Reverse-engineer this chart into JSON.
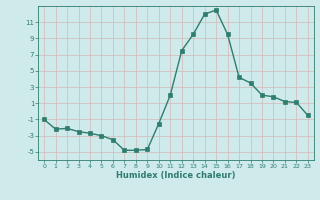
{
  "x": [
    0,
    1,
    2,
    3,
    4,
    5,
    6,
    7,
    8,
    9,
    10,
    11,
    12,
    13,
    14,
    15,
    16,
    17,
    18,
    19,
    20,
    21,
    22,
    23
  ],
  "y": [
    -1.0,
    -2.2,
    -2.1,
    -2.5,
    -2.7,
    -3.0,
    -3.5,
    -4.8,
    -4.8,
    -4.7,
    -1.5,
    2.0,
    7.5,
    9.5,
    12.0,
    12.5,
    9.5,
    4.2,
    3.5,
    2.0,
    1.8,
    1.2,
    1.1,
    -0.5
  ],
  "xlabel": "Humidex (Indice chaleur)",
  "xlim": [
    -0.5,
    23.5
  ],
  "ylim": [
    -6,
    13
  ],
  "yticks": [
    -5,
    -3,
    -1,
    1,
    3,
    5,
    7,
    9,
    11
  ],
  "xticks": [
    0,
    1,
    2,
    3,
    4,
    5,
    6,
    7,
    8,
    9,
    10,
    11,
    12,
    13,
    14,
    15,
    16,
    17,
    18,
    19,
    20,
    21,
    22,
    23
  ],
  "line_color": "#2e7d6e",
  "marker_size": 2.5,
  "bg_color": "#ceeaea",
  "grid_color": "#b8d8d8",
  "text_color": "#2e7d6e"
}
